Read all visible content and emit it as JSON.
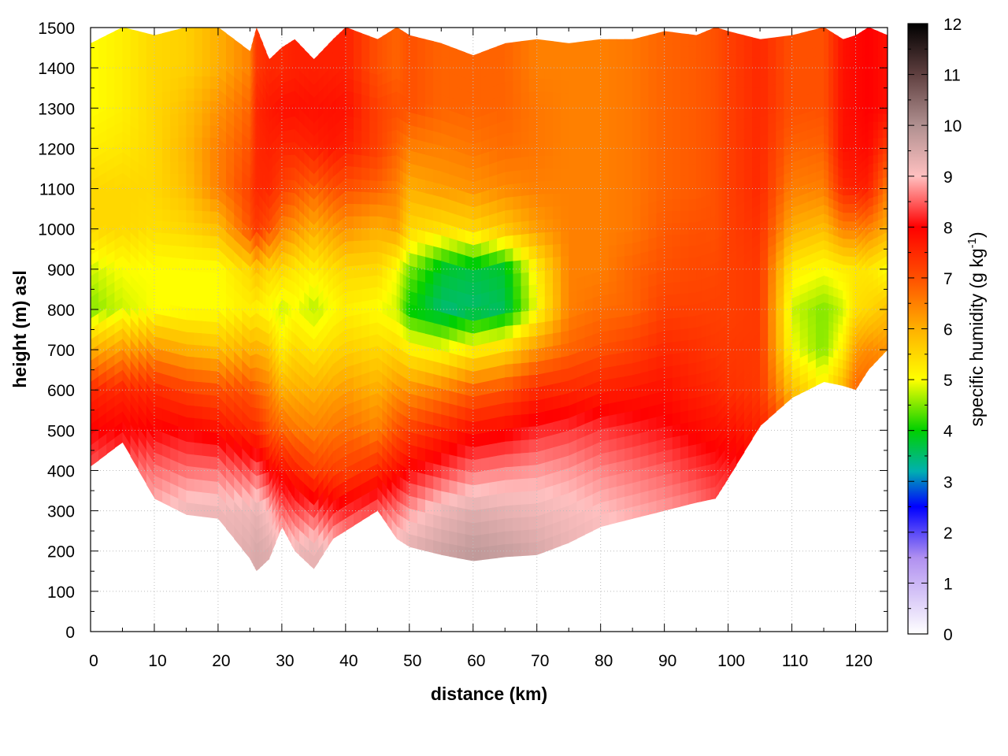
{
  "chart_data": {
    "type": "heatmap",
    "xlabel": "distance (km)",
    "ylabel": "height (m) asl",
    "xlim": [
      0,
      125
    ],
    "ylim": [
      0,
      1500
    ],
    "x_ticks": [
      0,
      10,
      20,
      30,
      40,
      50,
      60,
      70,
      80,
      90,
      100,
      110,
      120
    ],
    "y_ticks": [
      0,
      100,
      200,
      300,
      400,
      500,
      600,
      700,
      800,
      900,
      1000,
      1100,
      1200,
      1300,
      1400,
      1500
    ],
    "grid": true,
    "colorbar": {
      "label_main": "specific humidity (g kg",
      "label_sup": "-1",
      "label_end": ")",
      "range": [
        0,
        12
      ],
      "ticks": [
        0,
        1,
        2,
        3,
        4,
        5,
        6,
        7,
        8,
        9,
        10,
        11,
        12
      ],
      "stops": [
        {
          "v": 0,
          "color": "#ffffff"
        },
        {
          "v": 1.5,
          "color": "#b090f0"
        },
        {
          "v": 2.5,
          "color": "#0000ff"
        },
        {
          "v": 3.2,
          "color": "#00b0b0"
        },
        {
          "v": 4,
          "color": "#00d000"
        },
        {
          "v": 5,
          "color": "#ffff00"
        },
        {
          "v": 6,
          "color": "#ffb000"
        },
        {
          "v": 7,
          "color": "#ff5000"
        },
        {
          "v": 8,
          "color": "#ff0000"
        },
        {
          "v": 9,
          "color": "#ffc0c0"
        },
        {
          "v": 10,
          "color": "#b09090"
        },
        {
          "v": 11,
          "color": "#604040"
        },
        {
          "v": 12,
          "color": "#000000"
        }
      ]
    },
    "profiles": {
      "distance_km": [
        0,
        5,
        10,
        15,
        20,
        25,
        26,
        28,
        30,
        32,
        35,
        38,
        40,
        45,
        48,
        50,
        55,
        60,
        65,
        70,
        75,
        80,
        85,
        90,
        95,
        98,
        100,
        105,
        110,
        115,
        118,
        120,
        122,
        125
      ],
      "ground_m": [
        410,
        470,
        330,
        290,
        280,
        180,
        150,
        180,
        260,
        200,
        155,
        230,
        250,
        300,
        230,
        210,
        190,
        175,
        185,
        190,
        220,
        260,
        280,
        300,
        320,
        330,
        380,
        510,
        580,
        620,
        610,
        600,
        650,
        700
      ],
      "top_m": [
        1460,
        1500,
        1480,
        1500,
        1500,
        1440,
        1500,
        1420,
        1450,
        1470,
        1420,
        1470,
        1500,
        1470,
        1500,
        1480,
        1460,
        1430,
        1460,
        1470,
        1460,
        1470,
        1470,
        1490,
        1480,
        1500,
        1490,
        1470,
        1480,
        1500,
        1470,
        1480,
        1500,
        1480
      ]
    },
    "humidity_levels_m": [
      0,
      200,
      300,
      400,
      500,
      600,
      700,
      800,
      900,
      1000,
      1100,
      1200,
      1300,
      1400,
      1500
    ],
    "humidity_g_per_kg": [
      [
        9,
        9,
        9,
        8.5,
        8,
        7.5,
        6,
        4.5,
        4.8,
        5.5,
        5.5,
        5.2,
        5,
        5,
        5
      ],
      [
        9,
        9,
        9,
        8.6,
        8,
        7.5,
        6.2,
        4.8,
        5,
        5.5,
        5.5,
        5.3,
        5.2,
        5.2,
        5.2
      ],
      [
        9.2,
        9.2,
        9,
        8.6,
        8,
        7.5,
        6.3,
        5,
        5,
        5.4,
        5.5,
        5.5,
        5.5,
        5.5,
        5.5
      ],
      [
        9.3,
        9.3,
        9.2,
        8.6,
        8,
        7.2,
        6,
        5,
        5,
        5.5,
        5.8,
        5.9,
        5.8,
        5.6,
        5.6
      ],
      [
        9.3,
        9.3,
        9.2,
        8.6,
        7.8,
        7,
        5.8,
        5,
        5,
        5.8,
        6.5,
        6.5,
        6.3,
        6,
        6
      ],
      [
        9.4,
        9.4,
        9.2,
        8.4,
        7.5,
        7,
        6,
        5.2,
        5.5,
        7,
        7.2,
        7,
        6.8,
        6.5,
        6.5
      ],
      [
        9.5,
        9.5,
        9.3,
        8.5,
        7.5,
        6.8,
        6,
        5.2,
        5.8,
        7.3,
        7.5,
        7.5,
        7.5,
        7.3,
        7.3
      ],
      [
        9.4,
        9.4,
        9,
        8,
        7,
        6.5,
        5.8,
        5,
        5.5,
        7,
        7.5,
        7.6,
        7.7,
        7.5,
        7.5
      ],
      [
        9.2,
        9.2,
        8.5,
        7.8,
        6.8,
        6,
        5.2,
        4.8,
        5.5,
        6.5,
        7.2,
        7.5,
        7.8,
        7.5,
        7.5
      ],
      [
        9.2,
        9.2,
        8.4,
        7.6,
        6.6,
        6,
        5.5,
        5,
        5.3,
        6.3,
        7,
        7.5,
        7.8,
        7.6,
        7.6
      ],
      [
        9.3,
        9.3,
        8.4,
        7.2,
        6.5,
        6,
        5.3,
        4.7,
        5.2,
        6,
        6.8,
        7.6,
        7.8,
        7.6,
        7.6
      ],
      [
        9.2,
        9.2,
        8.2,
        7.2,
        6.6,
        6.1,
        5.5,
        5,
        5.4,
        6.2,
        7,
        7.7,
        7.8,
        7.6,
        7.6
      ],
      [
        9.2,
        9.2,
        8.2,
        7.2,
        6.7,
        6.2,
        5.6,
        5.2,
        5.5,
        6.3,
        7,
        7.6,
        7.8,
        7.6,
        7.6
      ],
      [
        9.3,
        9.3,
        8.5,
        7.5,
        6.5,
        6,
        5.5,
        5,
        5.5,
        6,
        6.8,
        7.2,
        7.2,
        7,
        7
      ],
      [
        9.3,
        9.3,
        8.6,
        7.8,
        7,
        6.3,
        5.5,
        4.8,
        5,
        6.2,
        6.5,
        6.8,
        7,
        6.8,
        6.8
      ],
      [
        9.4,
        9.4,
        8.8,
        8,
        7.2,
        6.3,
        5.2,
        4,
        4.5,
        5.5,
        6,
        6.5,
        7,
        7,
        7
      ],
      [
        9.6,
        9.6,
        9.2,
        8.3,
        7.5,
        6.5,
        5,
        3.5,
        3.8,
        5.4,
        6.2,
        6.5,
        6.8,
        6.8,
        6.8
      ],
      [
        9.8,
        9.8,
        9.4,
        8.6,
        7.8,
        6.8,
        5.2,
        3.5,
        3.7,
        5.5,
        6.3,
        6.6,
        6.8,
        6.8,
        6.8
      ],
      [
        9.7,
        9.7,
        9.3,
        8.7,
        7.9,
        7,
        5.5,
        3.6,
        3.8,
        5.7,
        6.4,
        6.7,
        6.8,
        6.8,
        6.8
      ],
      [
        9.5,
        9.5,
        9.2,
        8.8,
        8.2,
        7.5,
        6.3,
        5,
        5.2,
        6.2,
        6.5,
        6.6,
        6.6,
        6.5,
        6.5
      ],
      [
        9.3,
        9.3,
        9.1,
        8.8,
        8.3,
        7.5,
        6.8,
        6.5,
        6.5,
        6.5,
        6.5,
        6.5,
        6.5,
        6.5,
        6.5
      ],
      [
        9.2,
        9.2,
        9,
        8.7,
        8.3,
        7.6,
        7,
        6.7,
        6.5,
        6.5,
        6.5,
        6.5,
        6.5,
        6.5,
        6.5
      ],
      [
        9.1,
        9.1,
        8.9,
        8.6,
        8.2,
        7.7,
        7.2,
        6.8,
        6.8,
        6.6,
        6.6,
        6.6,
        6.6,
        6.6,
        6.6
      ],
      [
        9,
        9,
        8.8,
        8.5,
        8.1,
        7.8,
        7.5,
        7.2,
        7,
        6.9,
        6.8,
        6.8,
        6.8,
        6.8,
        6.8
      ],
      [
        9,
        9,
        8.7,
        8.3,
        7.9,
        7.6,
        7.4,
        7.2,
        7.1,
        7,
        6.9,
        6.9,
        6.9,
        6.9,
        6.9
      ],
      [
        9,
        9,
        8.5,
        8.2,
        7.8,
        7.5,
        7.3,
        7.2,
        7.1,
        7,
        7,
        7,
        7,
        7,
        7
      ],
      [
        9,
        9,
        8.5,
        8.2,
        7.8,
        7.4,
        7.3,
        7.2,
        7.2,
        7.2,
        7.2,
        7.2,
        7.2,
        7.2,
        7.2
      ],
      [
        8.8,
        8.8,
        8.4,
        8,
        7.6,
        7.3,
        7.3,
        7.3,
        7.3,
        7.4,
        7.5,
        7.5,
        7.5,
        7.5,
        7.5
      ],
      [
        8.6,
        8.6,
        8.2,
        7.8,
        7,
        5.8,
        5,
        4.8,
        5.2,
        6,
        6.5,
        6.8,
        7,
        7,
        7
      ],
      [
        8.5,
        8.5,
        8.2,
        7.6,
        6.5,
        5.2,
        4.5,
        4.5,
        5,
        5.8,
        6.5,
        6.8,
        7,
        7,
        7
      ],
      [
        8.4,
        8.4,
        8.2,
        7.8,
        7,
        6,
        5.2,
        4.8,
        5.2,
        6.5,
        7.5,
        7.8,
        7.8,
        7.8,
        7.8
      ],
      [
        8.4,
        8.4,
        8.2,
        7.8,
        7.2,
        6.8,
        6.2,
        5.4,
        5.3,
        6.5,
        7.6,
        7.8,
        7.9,
        7.9,
        7.9
      ],
      [
        8.4,
        8.4,
        8.2,
        7.8,
        7.2,
        6.8,
        6.4,
        5.5,
        5.3,
        6.5,
        7.6,
        7.9,
        8,
        8,
        8
      ],
      [
        8.4,
        8.4,
        8.2,
        7.8,
        7.2,
        6.8,
        6.3,
        5.8,
        5,
        6,
        6.5,
        7.2,
        7.8,
        7.8,
        7.8
      ]
    ]
  }
}
